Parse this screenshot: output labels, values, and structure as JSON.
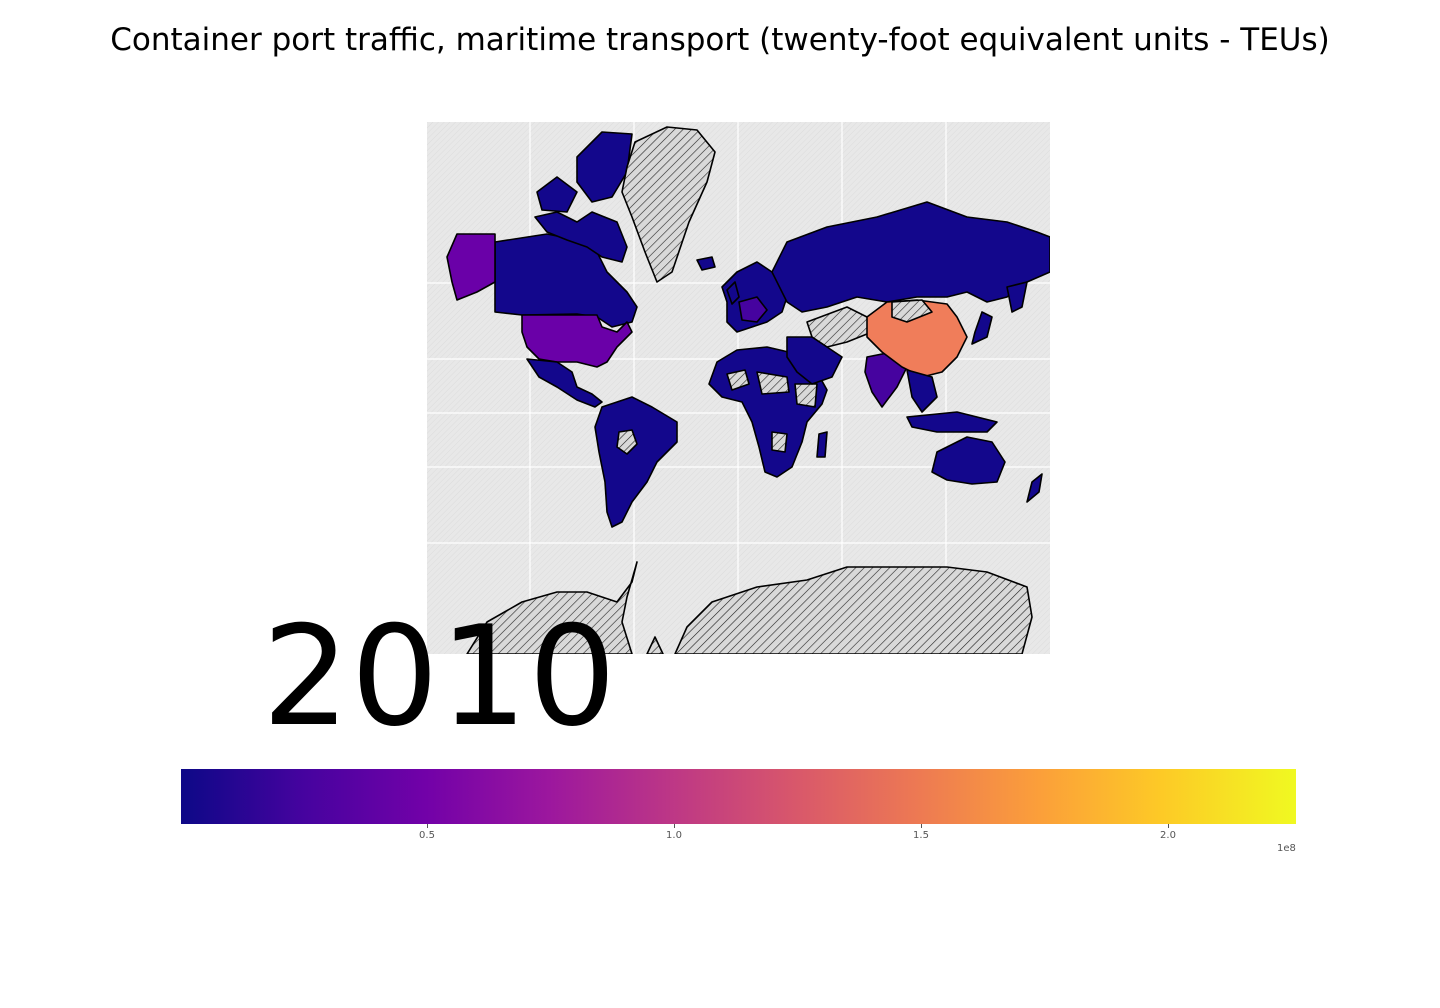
{
  "title": "Container port traffic, maritime transport (twenty-foot equivalent units - TEUs)",
  "year": "2010",
  "colormap": {
    "name": "plasma",
    "min": 0,
    "max": 226000000,
    "ticks": [
      {
        "value": 50000000,
        "label": "0.5"
      },
      {
        "value": 100000000,
        "label": "1.0"
      },
      {
        "value": 150000000,
        "label": "1.5"
      },
      {
        "value": 200000000,
        "label": "2.0"
      }
    ],
    "offset_label": "1e8"
  },
  "colors": {
    "low": "#0d0887",
    "mid_low": "#6a00a8",
    "high_china": "#f07d5a",
    "no_data": "#d9d9d9",
    "ocean": "#e5e5e5",
    "grid": "#ffffff"
  },
  "regions": [
    {
      "name": "United States",
      "level": "mid",
      "color": "#6a00a8"
    },
    {
      "name": "China",
      "level": "high",
      "color": "#f07d5a"
    },
    {
      "name": "Greenland",
      "level": "no data",
      "color": "#d9d9d9"
    },
    {
      "name": "Antarctica",
      "level": "no data",
      "color": "#d9d9d9"
    },
    {
      "name": "Russia",
      "level": "low",
      "color": "#0d0887"
    },
    {
      "name": "Canada",
      "level": "low",
      "color": "#0d0887"
    }
  ]
}
